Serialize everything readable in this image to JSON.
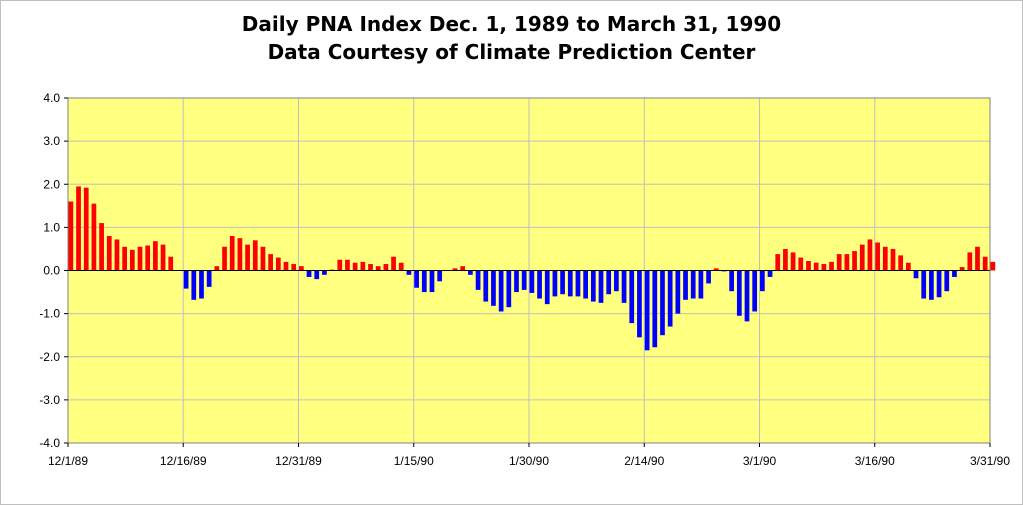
{
  "chart_data": {
    "type": "bar",
    "title": "Daily PNA Index Dec. 1, 1989 to March 31, 1990",
    "subtitle": "Data Courtesy of Climate Prediction Center",
    "xlabel": "",
    "ylabel": "",
    "ylim": [
      -4.0,
      4.0
    ],
    "y_ticks": [
      "4.0",
      "3.0",
      "2.0",
      "1.0",
      "0.0",
      "-1.0",
      "-2.0",
      "-3.0",
      "-4.0"
    ],
    "y_tick_values": [
      4,
      3,
      2,
      1,
      0,
      -1,
      -2,
      -3,
      -4
    ],
    "x_ticks": [
      "12/1/89",
      "12/16/89",
      "12/31/89",
      "1/15/90",
      "1/30/90",
      "2/14/90",
      "3/1/90",
      "3/16/90",
      "3/31/90"
    ],
    "x_tick_day_index": [
      0,
      15,
      30,
      45,
      60,
      75,
      90,
      105,
      120
    ],
    "grid": true,
    "colors": {
      "positive": "#ff0000",
      "negative": "#0000ff",
      "plot_background": "#ffff80",
      "gridline": "#c0c0c0"
    },
    "days": 121,
    "values": [
      1.6,
      1.95,
      1.92,
      1.55,
      1.1,
      0.8,
      0.72,
      0.55,
      0.48,
      0.55,
      0.58,
      0.68,
      0.6,
      0.32,
      0.0,
      -0.42,
      -0.68,
      -0.65,
      -0.38,
      0.1,
      0.55,
      0.8,
      0.75,
      0.6,
      0.7,
      0.55,
      0.38,
      0.3,
      0.2,
      0.15,
      0.1,
      -0.15,
      -0.2,
      -0.1,
      0.02,
      0.25,
      0.25,
      0.18,
      0.2,
      0.15,
      0.1,
      0.15,
      0.32,
      0.18,
      -0.1,
      -0.4,
      -0.5,
      -0.5,
      -0.25,
      0.0,
      0.05,
      0.1,
      -0.1,
      -0.45,
      -0.72,
      -0.82,
      -0.95,
      -0.85,
      -0.5,
      -0.45,
      -0.52,
      -0.65,
      -0.78,
      -0.6,
      -0.55,
      -0.6,
      -0.6,
      -0.65,
      -0.72,
      -0.75,
      -0.55,
      -0.48,
      -0.75,
      -1.22,
      -1.55,
      -1.85,
      -1.78,
      -1.5,
      -1.3,
      -1.0,
      -0.68,
      -0.65,
      -0.65,
      -0.3,
      0.05,
      -0.02,
      -0.48,
      -1.05,
      -1.18,
      -0.95,
      -0.48,
      -0.15,
      0.38,
      0.5,
      0.42,
      0.3,
      0.22,
      0.18,
      0.15,
      0.2,
      0.38,
      0.38,
      0.45,
      0.6,
      0.72,
      0.65,
      0.55,
      0.5,
      0.35,
      0.18,
      -0.18,
      -0.65,
      -0.68,
      -0.62,
      -0.48,
      -0.15,
      0.08,
      0.42,
      0.55,
      0.32,
      0.2
    ]
  }
}
